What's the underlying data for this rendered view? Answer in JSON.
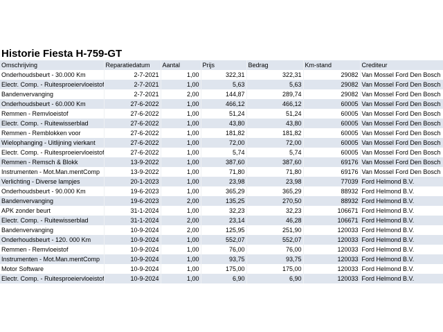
{
  "title": "Historie Fiesta H-759-GT",
  "table": {
    "header": [
      "Omschrijving",
      "Reparatiedatum",
      "Aantal",
      "Prijs",
      "Bedrag",
      "Km-stand",
      "Crediteur"
    ],
    "rows": [
      [
        "Onderhoudsbeurt - 30.000 Km",
        "2-7-2021",
        "1,00",
        "322,31",
        "322,31",
        "29082",
        "Van Mossel Ford Den Bosch"
      ],
      [
        "Electr. Comp. - Ruitesproeiervloeistof",
        "2-7-2021",
        "1,00",
        "5,63",
        "5,63",
        "29082",
        "Van Mossel Ford Den Bosch"
      ],
      [
        "Bandenvervanging",
        "2-7-2021",
        "2,00",
        "144,87",
        "289,74",
        "29082",
        "Van Mossel Ford Den Bosch"
      ],
      [
        "Onderhoudsbeurt - 60.000 Km",
        "27-6-2022",
        "1,00",
        "466,12",
        "466,12",
        "60005",
        "Van Mossel Ford Den Bosch"
      ],
      [
        "Remmen - Remvloeistof",
        "27-6-2022",
        "1,00",
        "51,24",
        "51,24",
        "60005",
        "Van Mossel Ford Den Bosch"
      ],
      [
        "Electr. Comp. - Ruitewisserblad",
        "27-6-2022",
        "1,00",
        "43,80",
        "43,80",
        "60005",
        "Van Mossel Ford Den Bosch"
      ],
      [
        "Remmen - Remblokken voor",
        "27-6-2022",
        "1,00",
        "181,82",
        "181,82",
        "60005",
        "Van Mossel Ford Den Bosch"
      ],
      [
        "Wielophanging - Uitlijning vierkant",
        "27-6-2022",
        "1,00",
        "72,00",
        "72,00",
        "60005",
        "Van Mossel Ford Den Bosch"
      ],
      [
        "Electr. Comp. - Ruitesproeiervloeistof",
        "27-6-2022",
        "1,00",
        "5,74",
        "5,74",
        "60005",
        "Van Mossel Ford Den Bosch"
      ],
      [
        "Remmen - Remsch & Blokk",
        "13-9-2022",
        "1,00",
        "387,60",
        "387,60",
        "69176",
        "Van Mossel Ford Den Bosch"
      ],
      [
        "Instrumenten - Mot.Man.mentComp",
        "13-9-2022",
        "1,00",
        "71,80",
        "71,80",
        "69176",
        "Van Mossel Ford Den Bosch"
      ],
      [
        "Verlichting - Diverse lampjes",
        "20-1-2023",
        "1,00",
        "23,98",
        "23,98",
        "77039",
        "Ford Helmond B.V."
      ],
      [
        "Onderhoudsbeurt - 90.000 Km",
        "19-6-2023",
        "1,00",
        "365,29",
        "365,29",
        "88932",
        "Ford Helmond B.V."
      ],
      [
        "Bandenvervanging",
        "19-6-2023",
        "2,00",
        "135,25",
        "270,50",
        "88932",
        "Ford Helmond B.V."
      ],
      [
        "APK zonder beurt",
        "31-1-2024",
        "1,00",
        "32,23",
        "32,23",
        "106671",
        "Ford Helmond B.V."
      ],
      [
        "Electr. Comp. - Ruitewisserblad",
        "31-1-2024",
        "2,00",
        "23,14",
        "46,28",
        "106671",
        "Ford Helmond B.V."
      ],
      [
        "Bandenvervanging",
        "10-9-2024",
        "2,00",
        "125,95",
        "251,90",
        "120033",
        "Ford Helmond B.V."
      ],
      [
        "Onderhoudsbeurt - 120. 000 Km",
        "10-9-2024",
        "1,00",
        "552,07",
        "552,07",
        "120033",
        "Ford Helmond B.V."
      ],
      [
        "Remmen - Remvloeistof",
        "10-9-2024",
        "1,00",
        "76,00",
        "76,00",
        "120033",
        "Ford Helmond B.V."
      ],
      [
        "Instrumenten - Mot.Man.mentComp",
        "10-9-2024",
        "1,00",
        "93,75",
        "93,75",
        "120033",
        "Ford Helmond B.V."
      ],
      [
        "Motor Software",
        "10-9-2024",
        "1,00",
        "175,00",
        "175,00",
        "120033",
        "Ford Helmond B.V."
      ],
      [
        "Electr. Comp. - Ruitesproeiervloeistof",
        "10-9-2024",
        "1,00",
        "6,90",
        "6,90",
        "120033",
        "Ford Helmond B.V."
      ]
    ]
  }
}
